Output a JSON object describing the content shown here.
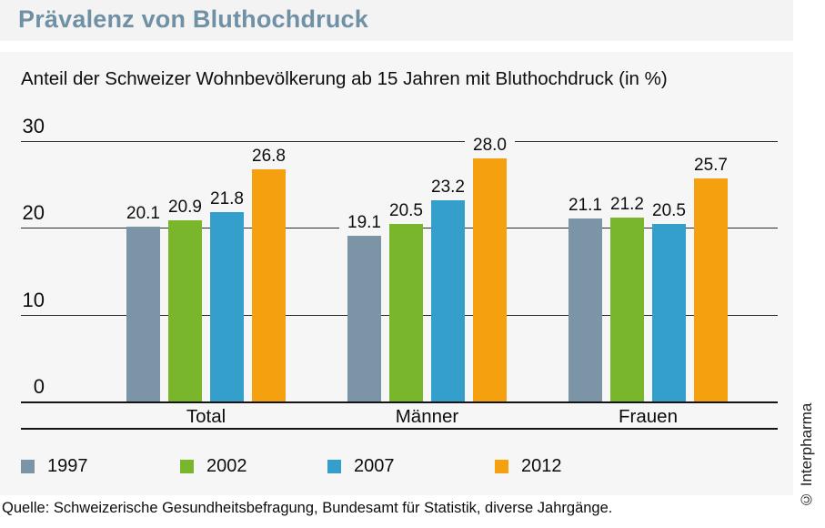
{
  "header": {
    "title": "Prävalenz von Bluthochdruck"
  },
  "chart": {
    "subtitle": "Anteil der Schweizer Wohnbevölkerung ab 15 Jahren mit Bluthochdruck (in %)"
  },
  "chart_data": {
    "type": "bar",
    "title": "Prävalenz von Bluthochdruck",
    "subtitle": "Anteil der Schweizer Wohnbevölkerung ab 15 Jahren mit Bluthochdruck (in %)",
    "categories": [
      "Total",
      "Männer",
      "Frauen"
    ],
    "series": [
      {
        "name": "1997",
        "color": "#7b94a6",
        "values": [
          20.1,
          19.1,
          21.1
        ]
      },
      {
        "name": "2002",
        "color": "#7ab62c",
        "values": [
          20.9,
          20.5,
          21.2
        ]
      },
      {
        "name": "2007",
        "color": "#339fca",
        "values": [
          21.8,
          23.2,
          20.5
        ]
      },
      {
        "name": "2012",
        "color": "#f5a00f",
        "values": [
          26.8,
          28.0,
          25.7
        ]
      }
    ],
    "ylim": [
      0,
      30
    ],
    "yticks": [
      30,
      20,
      10,
      0
    ],
    "grid": true,
    "value_labels": true,
    "legend_position": "bottom",
    "xlabel": "",
    "ylabel": ""
  },
  "footer": {
    "source": "Quelle: Schweizerische Gesundheitsbefragung, Bundesamt für Statistik, diverse Jahrgänge.",
    "copyright": "© Interpharma"
  },
  "colors": {
    "title_accent": "#6f90a5",
    "panel_background": "#f6f6f7",
    "band_background": "#f3f3f4",
    "series_1997": "#7b94a6",
    "series_2002": "#7ab62c",
    "series_2007": "#339fca",
    "series_2012": "#f5a00f"
  }
}
